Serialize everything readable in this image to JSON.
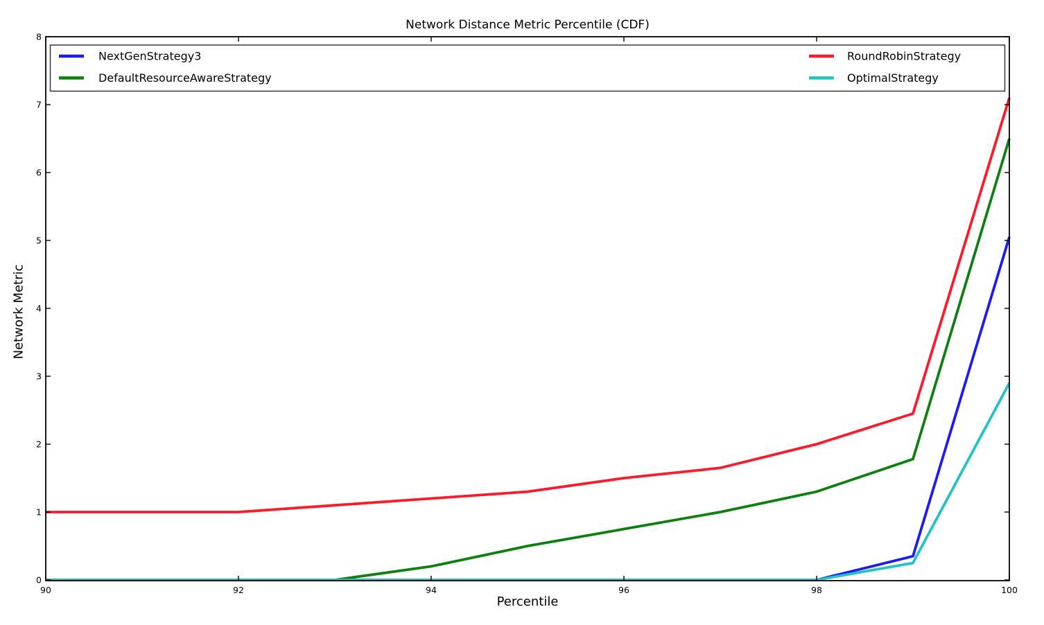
{
  "chart_data": {
    "type": "line",
    "title": "Network Distance Metric Percentile (CDF)",
    "xlabel": "Percentile",
    "ylabel": "Network Metric",
    "xlim": [
      90,
      100
    ],
    "ylim": [
      0,
      8
    ],
    "xticks": [
      90,
      92,
      94,
      96,
      98,
      100
    ],
    "yticks": [
      0,
      1,
      2,
      3,
      4,
      5,
      6,
      7,
      8
    ],
    "grid": false,
    "x": [
      90,
      91,
      92,
      93,
      94,
      95,
      96,
      97,
      98,
      99,
      100
    ],
    "series": [
      {
        "name": "NextGenStrategy3",
        "color": "#1c1cf0",
        "values": [
          0,
          0,
          0,
          0,
          0,
          0,
          0,
          0,
          0,
          0.35,
          5.05
        ]
      },
      {
        "name": "DefaultResourceAwareStrategy",
        "color": "#0e800e",
        "values": [
          0,
          0,
          0,
          0,
          0.2,
          0.5,
          0.75,
          1.0,
          1.3,
          1.78,
          6.5
        ]
      },
      {
        "name": "RoundRobinStrategy",
        "color": "#fa1a28",
        "values": [
          1.0,
          1.0,
          1.0,
          1.1,
          1.2,
          1.3,
          1.5,
          1.65,
          2.0,
          2.45,
          7.1
        ]
      },
      {
        "name": "OptimalStrategy",
        "color": "#24c2c4",
        "values": [
          0,
          0,
          0,
          0,
          0,
          0,
          0,
          0,
          0,
          0.25,
          2.9
        ]
      }
    ],
    "draw_order": [
      "NextGenStrategy3",
      "DefaultResourceAwareStrategy",
      "RoundRobinStrategy",
      "OptimalStrategy"
    ],
    "legend": {
      "position": "upper full-width inside axes, 2 columns",
      "columns": [
        [
          "NextGenStrategy3",
          "DefaultResourceAwareStrategy"
        ],
        [
          "RoundRobinStrategy",
          "OptimalStrategy"
        ]
      ]
    },
    "axis_color": "#000000",
    "background_color": "#ffffff"
  }
}
